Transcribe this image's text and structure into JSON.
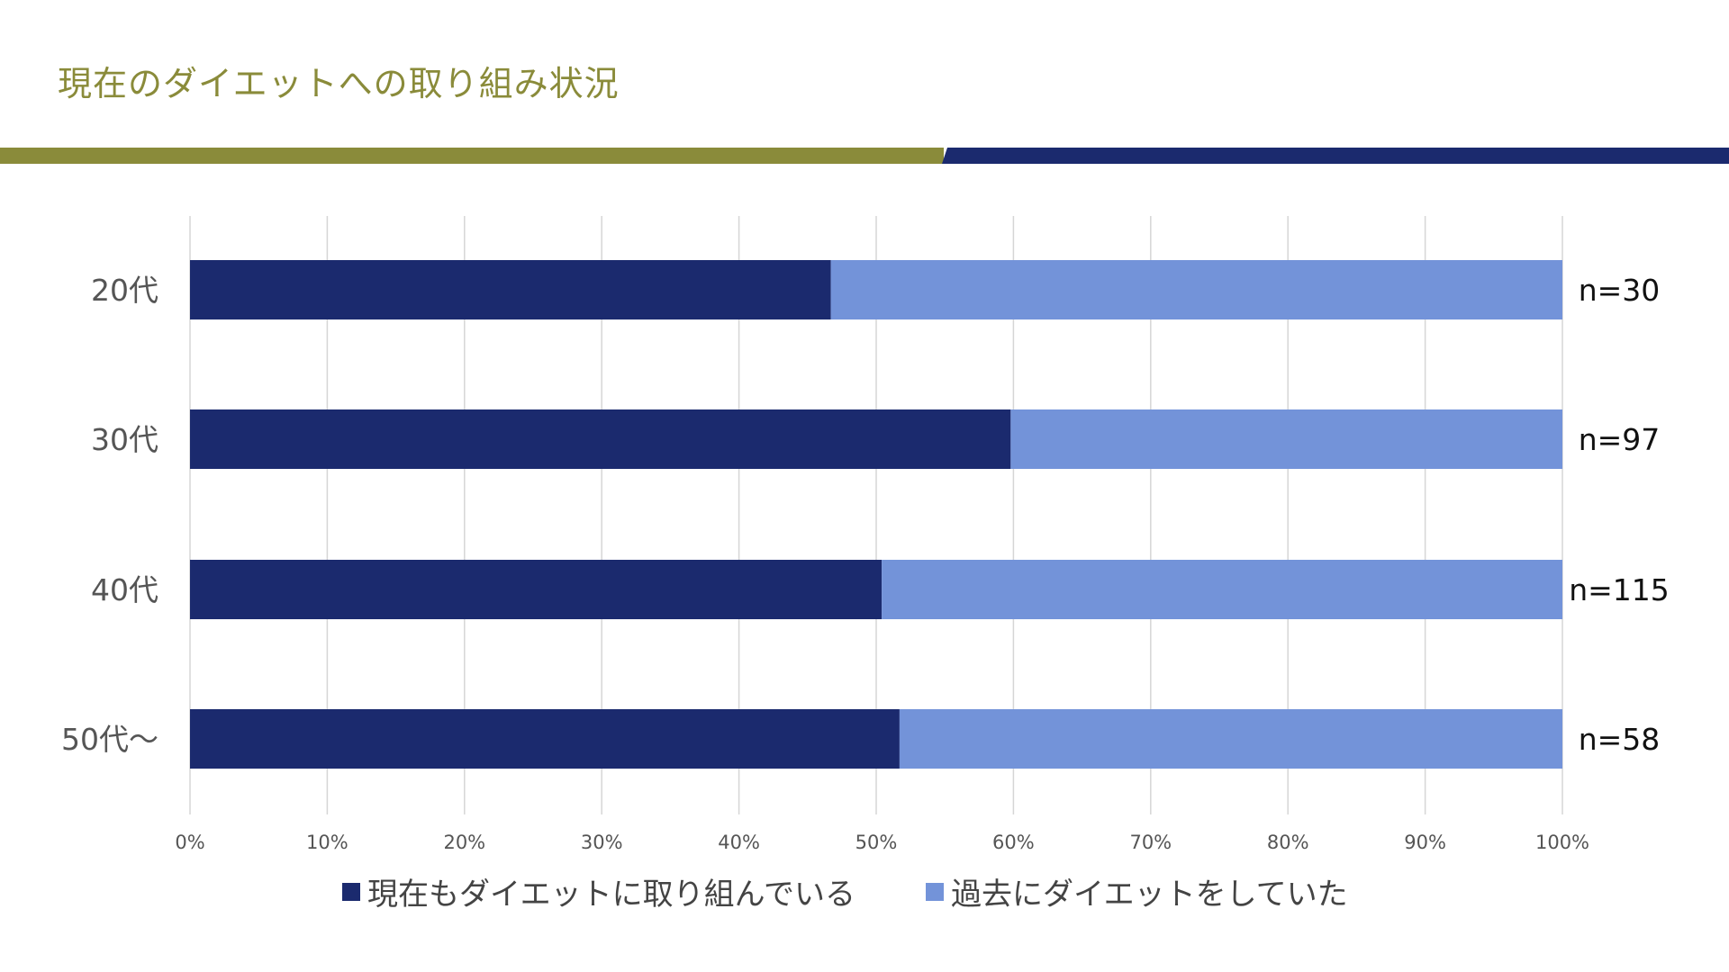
{
  "title": "現在のダイエットへの取り組み状況",
  "chart_data": {
    "type": "bar",
    "orientation": "horizontal",
    "stacked": true,
    "categories": [
      "20代",
      "30代",
      "40代",
      "50代〜"
    ],
    "series": [
      {
        "name": "現在もダイエットに取り組んでいる",
        "color": "#1b2a6e",
        "values": [
          46.7,
          59.8,
          50.4,
          51.7
        ]
      },
      {
        "name": "過去にダイエットをしていた",
        "color": "#7393d9",
        "values": [
          53.3,
          40.2,
          49.6,
          48.3
        ]
      }
    ],
    "sample_labels": [
      "n=30",
      "n=97",
      "n=115",
      "n=58"
    ],
    "xticks": [
      "0%",
      "10%",
      "20%",
      "30%",
      "40%",
      "50%",
      "60%",
      "70%",
      "80%",
      "90%",
      "100%"
    ],
    "xlim": [
      0,
      100
    ],
    "grid": true,
    "legend_position": "bottom"
  }
}
